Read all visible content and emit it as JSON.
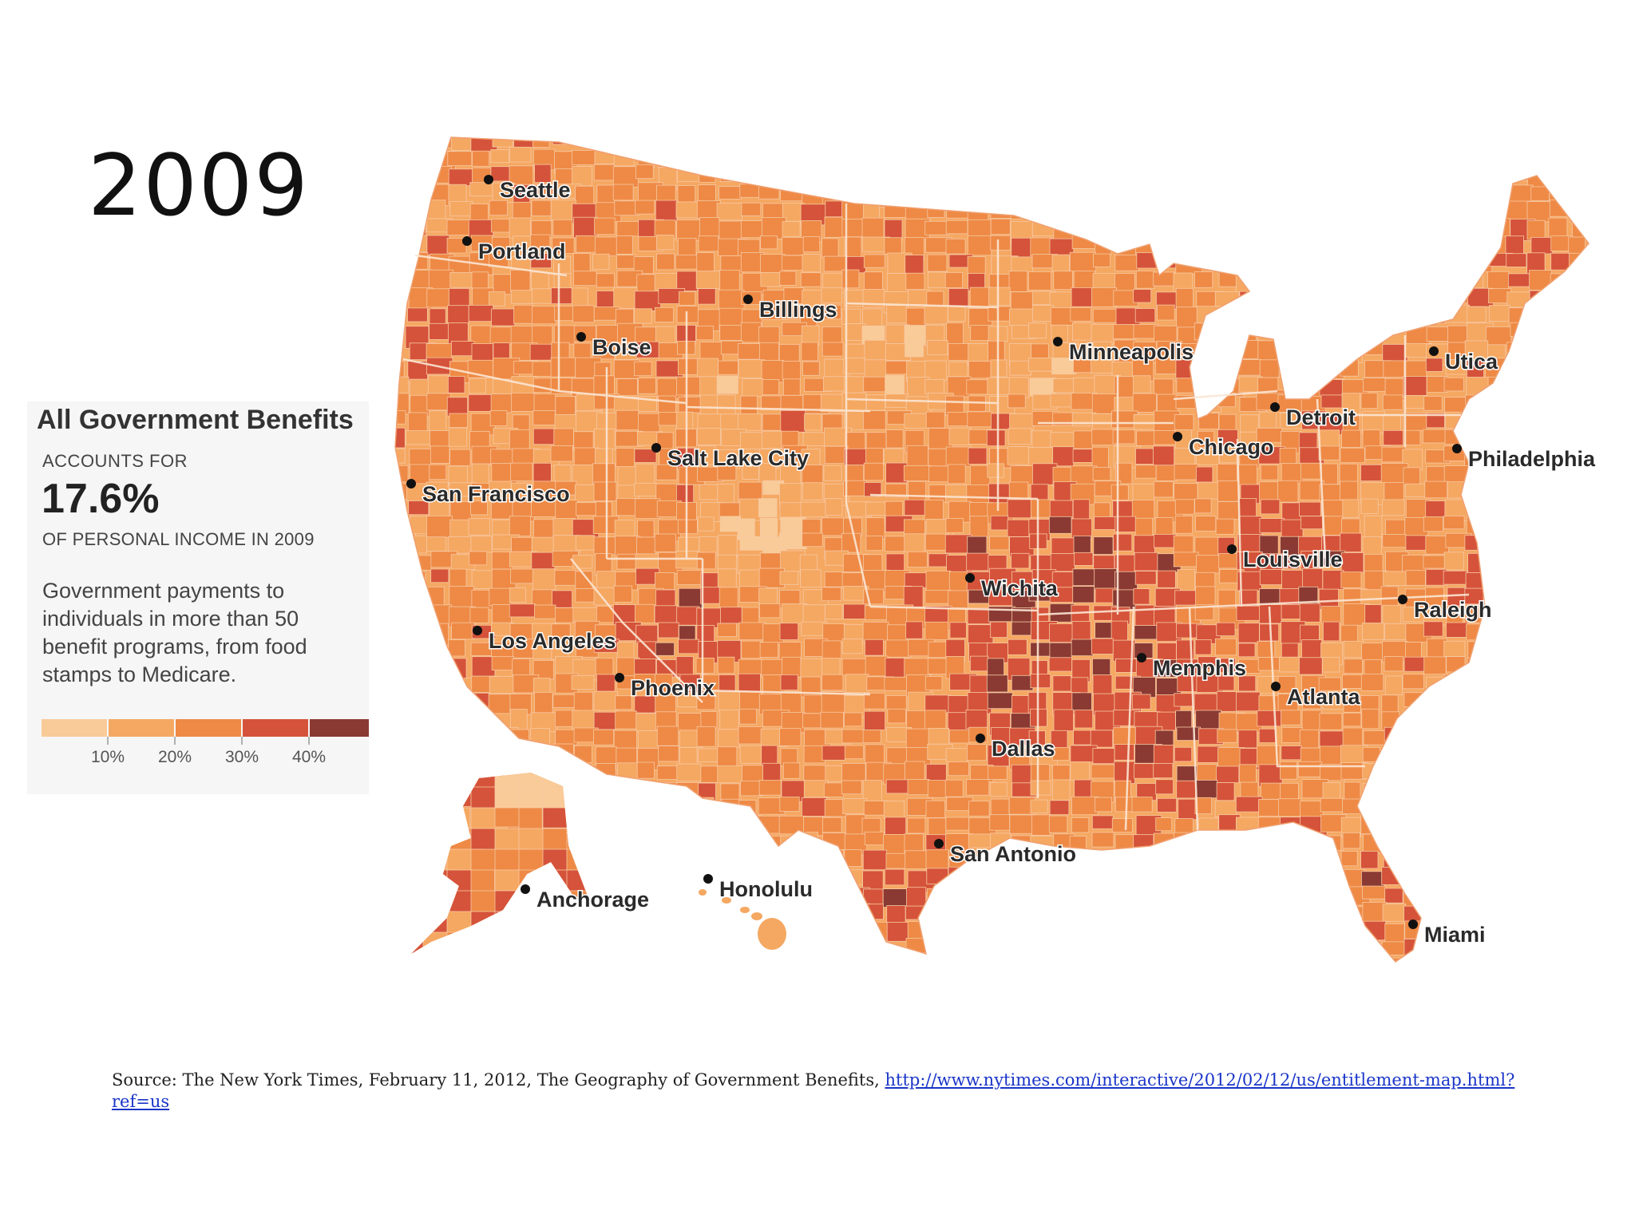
{
  "year": "2009",
  "legend": {
    "title": "All Government Benefits",
    "accounts_for": "ACCOUNTS FOR",
    "percent": "17.6%",
    "of_income": "OF PERSONAL INCOME IN 2009",
    "description": "Government payments to individuals in more than 50 benefit programs, from food stamps to Medicare.",
    "scale_colors": [
      "#f9cb98",
      "#f5a862",
      "#ee8a45",
      "#d5533a",
      "#8a3a33"
    ],
    "scale_labels": [
      "10%",
      "20%",
      "30%",
      "40%"
    ]
  },
  "map": {
    "palette": [
      "#f9cb98",
      "#f5a862",
      "#ee8a45",
      "#d5533a",
      "#8a3a33"
    ],
    "cities": [
      {
        "name": "Seattle"
      },
      {
        "name": "Portland"
      },
      {
        "name": "Billings"
      },
      {
        "name": "Boise"
      },
      {
        "name": "Minneapolis"
      },
      {
        "name": "Utica"
      },
      {
        "name": "Detroit"
      },
      {
        "name": "Chicago"
      },
      {
        "name": "Philadelphia"
      },
      {
        "name": "Salt Lake City"
      },
      {
        "name": "San Francisco"
      },
      {
        "name": "Louisville"
      },
      {
        "name": "Wichita"
      },
      {
        "name": "Raleigh"
      },
      {
        "name": "Los Angeles"
      },
      {
        "name": "Memphis"
      },
      {
        "name": "Phoenix"
      },
      {
        "name": "Atlanta"
      },
      {
        "name": "Dallas"
      },
      {
        "name": "San Antonio"
      },
      {
        "name": "Anchorage"
      },
      {
        "name": "Honolulu"
      },
      {
        "name": "Miami"
      }
    ]
  },
  "source": {
    "text": "Source: The New York Times, February 11, 2012, The Geography of Government Benefits, ",
    "link": "http://www.nytimes.com/interactive/2012/02/12/us/entitlement-map.html?ref=us"
  }
}
